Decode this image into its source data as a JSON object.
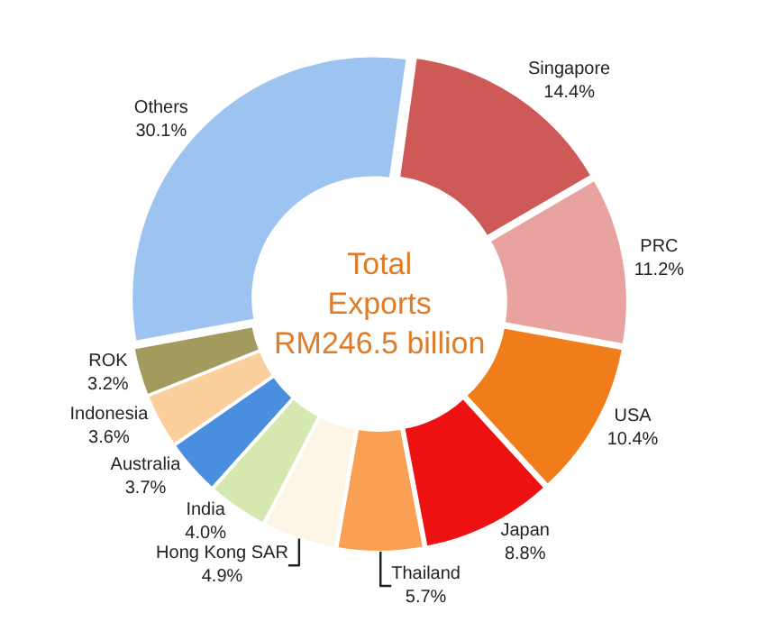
{
  "chart_data": {
    "type": "donut",
    "annotations": [
      "Total Exports RM246.5 billion"
    ],
    "categories": [
      "Singapore",
      "PRC",
      "USA",
      "Japan",
      "Thailand",
      "Hong Kong SAR",
      "India",
      "Australia",
      "Indonesia",
      "ROK",
      "Others"
    ],
    "values": [
      14.4,
      11.2,
      10.4,
      8.8,
      5.7,
      4.9,
      4.0,
      3.7,
      3.6,
      3.2,
      30.1
    ],
    "value_labels": [
      "14.4%",
      "11.2%",
      "10.4%",
      "8.8%",
      "5.7%",
      "4.9%",
      "4.0%",
      "3.7%",
      "3.6%",
      "3.2%",
      "30.1%"
    ],
    "colors": [
      "#cd5a57",
      "#e8a3a0",
      "#f07d1a",
      "#ee1111",
      "#f9a055",
      "#fdf5e6",
      "#d4e8b0",
      "#4a8fdd",
      "#fbcf9c",
      "#a39a5e",
      "#9dc3f0"
    ],
    "legend": false
  }
}
